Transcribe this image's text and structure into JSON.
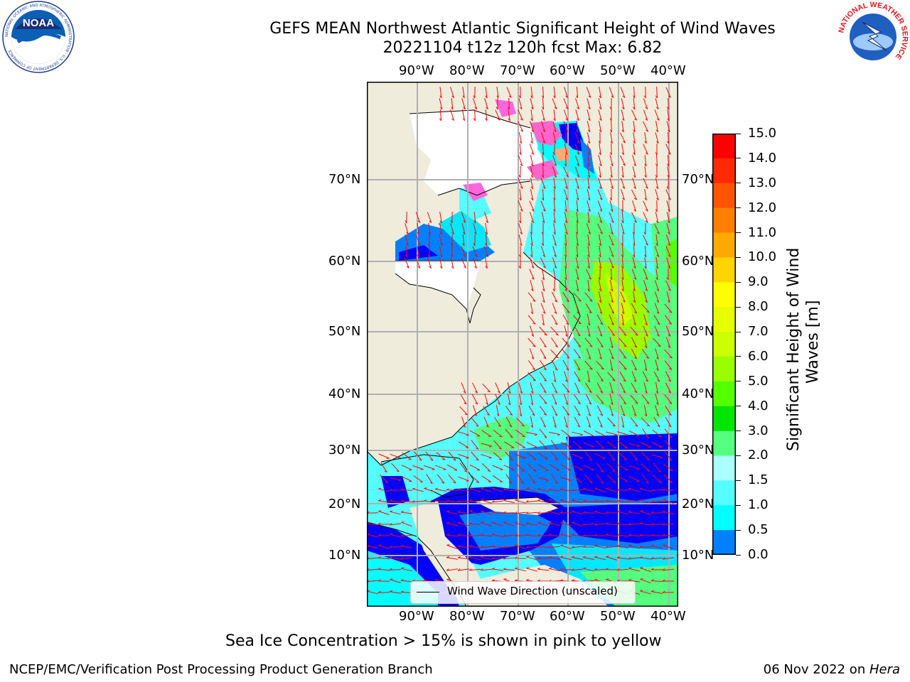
{
  "header": {
    "title_line1": "GEFS MEAN Northwest Atlantic Significant Height of Wind Waves",
    "title_line2": "20221104 t12z 120h fcst   Max: 6.82"
  },
  "logos": {
    "left": "NOAA",
    "left_ring": "NATIONAL OCEANIC AND ATMOSPHERIC ADMINISTRATION · U.S. DEPARTMENT OF COMMERCE",
    "right_ring": "NATIONAL WEATHER SERVICE"
  },
  "map": {
    "lon_labels": [
      "90°W",
      "80°W",
      "70°W",
      "60°W",
      "50°W",
      "40°W"
    ],
    "lat_labels": [
      "70°N",
      "60°N",
      "50°N",
      "40°N",
      "30°N",
      "20°N",
      "10°N"
    ],
    "legend_text": "Wind Wave Direction (unscaled)",
    "colors": {
      "land": "#efecdc",
      "ice_white": "#ffffff",
      "wind_arrow": "#ff0000",
      "grid": "#b0b0b0"
    }
  },
  "colorbar": {
    "label": "Significant Height of Wind Waves [m]",
    "label_line1": "Significant Height of Wind",
    "label_line2": "Waves [m]",
    "ticks": [
      "15.0",
      "14.0",
      "13.0",
      "12.0",
      "11.0",
      "10.0",
      "9.0",
      "8.0",
      "7.0",
      "6.0",
      "5.0",
      "4.0",
      "3.0",
      "2.0",
      "1.5",
      "1.0",
      "0.5",
      "0.0"
    ],
    "colors": [
      "#ff0000",
      "#ff2a00",
      "#ff5500",
      "#ff8000",
      "#ffaa00",
      "#ffd400",
      "#ffff00",
      "#e6ff00",
      "#ccff00",
      "#99ff00",
      "#55ff00",
      "#00e600",
      "#55ff80",
      "#aaffff",
      "#55ffff",
      "#00ffff",
      "#0080ff",
      "#0000ff"
    ]
  },
  "caption": "Sea Ice Concentration > 15% is shown in pink to yellow",
  "footer": {
    "left": "NCEP/EMC/Verification Post Processing Product Generation Branch",
    "right_date": "06 Nov 2022 on ",
    "right_host": "Hera"
  }
}
